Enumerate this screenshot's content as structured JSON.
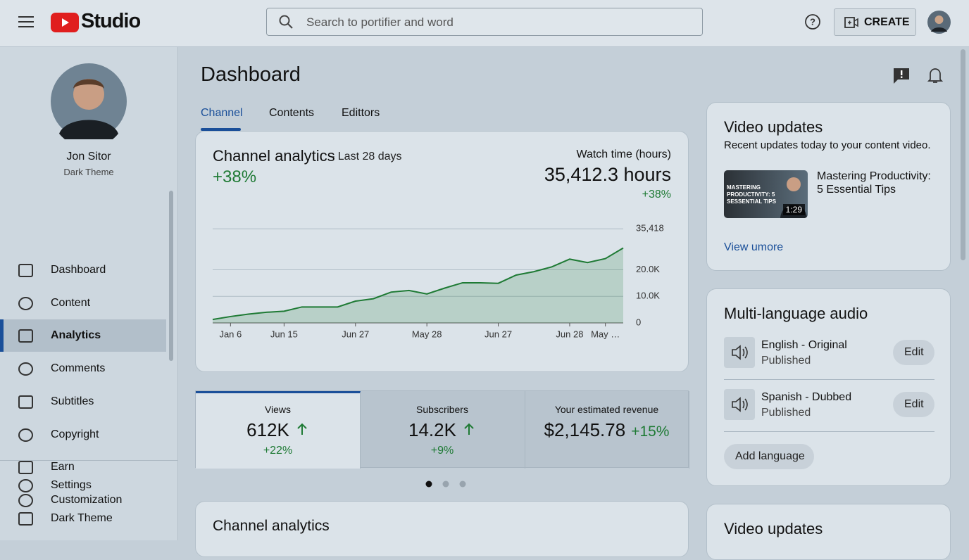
{
  "header": {
    "logo": "Studio",
    "search_placeholder": "Search to portifier and word",
    "create": "CREATE"
  },
  "sidebar": {
    "name": "Jon Sitor",
    "subtitle": "Dark Theme",
    "nav": [
      "Dashboard",
      "Content",
      "Analytics",
      "Comments",
      "Subtitles",
      "Copyright",
      "Earn",
      "Customization"
    ],
    "bottom": [
      "Settings",
      "Dark Theme"
    ]
  },
  "page_title": "Dashboard",
  "tabs": [
    "Channel",
    "Contents",
    "Edittors"
  ],
  "analytics_card": {
    "title": "Channel analytics",
    "period": "- Last 28 days",
    "change": "+38%",
    "watch_label": "Watch time (hours)",
    "watch_value": "35,412.3 hours",
    "watch_change": "+38%"
  },
  "chart_data": {
    "type": "line",
    "categories": [
      null,
      "Jan 6",
      null,
      null,
      "Jun 15",
      null,
      null,
      null,
      "Jun 27",
      null,
      null,
      null,
      "May 28",
      null,
      null,
      null,
      "Jun 27",
      null,
      null,
      null,
      "Jun 28",
      null,
      "May …",
      null
    ],
    "series": [
      {
        "color": "#1e7a34",
        "values": [
          1300,
          2400,
          3300,
          4000,
          4400,
          6000,
          6000,
          6000,
          8200,
          9100,
          11600,
          12200,
          10900,
          13100,
          15100,
          15100,
          14900,
          18000,
          19300,
          21100,
          24000,
          22700,
          24200,
          28200
        ]
      }
    ],
    "ylim": [
      0,
      36000
    ],
    "yticks": [
      0,
      {
        "value": 10000,
        "label": "10.0K"
      },
      {
        "value": 20000,
        "label": "20.0K"
      },
      {
        "value": 35418,
        "label": "35,418"
      }
    ],
    "grid": true
  },
  "stats": [
    {
      "label": "Views",
      "value": "612K",
      "change": "+22%"
    },
    {
      "label": "Subscribers",
      "value": "14.2K",
      "change": "+9%"
    },
    {
      "label": "Your estimated revenue",
      "value": "$2,145.78",
      "change": "+15%"
    }
  ],
  "second_card": {
    "title": "Channel analytics"
  },
  "video_updates": {
    "title": "Video updates",
    "subtitle": "Recent updates today to your content video.",
    "video_title": "Mastering Productivity: 5 Essential Tips",
    "thumb_text": "MASTERING PRODUCTIVITY: 5 SESSENTIAL TIPS",
    "duration": "1:29",
    "link": "View umore"
  },
  "audio": {
    "title": "Multi-language audio",
    "tracks": [
      {
        "name": "English - Original",
        "status": "Published",
        "action": "Edit"
      },
      {
        "name": "Spanish - Dubbed",
        "status": "Published",
        "action": "Edit"
      }
    ],
    "add": "Add language"
  },
  "video_updates_2": {
    "title": "Video updates"
  }
}
